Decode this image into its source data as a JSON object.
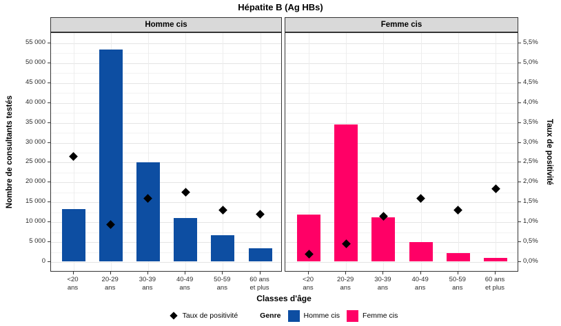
{
  "chart_data": {
    "type": "bar",
    "title": "Hépatite B (Ag HBs)",
    "xlabel": "Classes d'âge",
    "ylabel_left": "Nombre de consultants testés",
    "ylabel_right": "Taux de positivité",
    "facets": [
      "Homme cis",
      "Femme cis"
    ],
    "categories": [
      "<20\nans",
      "20-29\nans",
      "30-39\nans",
      "40-49\nans",
      "50-59\nans",
      "60 ans\net plus"
    ],
    "y_left_axis": {
      "min": 0,
      "max": 55000,
      "tick_step": 5000,
      "tick_labels": [
        "0",
        "5 000",
        "10 000",
        "15 000",
        "20 000",
        "25 000",
        "30 000",
        "35 000",
        "40 000",
        "45 000",
        "50 000",
        "55 000"
      ]
    },
    "y_right_axis": {
      "min": 0,
      "max": 5.5,
      "tick_step": 0.5,
      "tick_labels": [
        "0,0%",
        "0,5%",
        "1,0%",
        "1,5%",
        "2,0%",
        "2,5%",
        "3,0%",
        "3,5%",
        "4,0%",
        "4,5%",
        "5,0%",
        "5,5%"
      ]
    },
    "series": [
      {
        "name": "Homme cis",
        "color": "#0d4ea2",
        "tested_counts": [
          13200,
          53300,
          24900,
          10900,
          6500,
          3300
        ],
        "positivity_rate_pct": [
          2.65,
          0.95,
          1.6,
          1.75,
          1.3,
          1.2
        ]
      },
      {
        "name": "Femme cis",
        "color": "#ff0066",
        "tested_counts": [
          11800,
          34500,
          11000,
          4800,
          2000,
          800
        ],
        "positivity_rate_pct": [
          0.2,
          0.45,
          1.15,
          1.6,
          1.3,
          1.85
        ]
      }
    ],
    "legend": {
      "point_label": "Taux de positivité",
      "group_title": "Genre",
      "items": [
        "Homme cis",
        "Femme cis"
      ],
      "point_color": "#000000"
    },
    "grid": true,
    "legend_position": "bottom"
  }
}
